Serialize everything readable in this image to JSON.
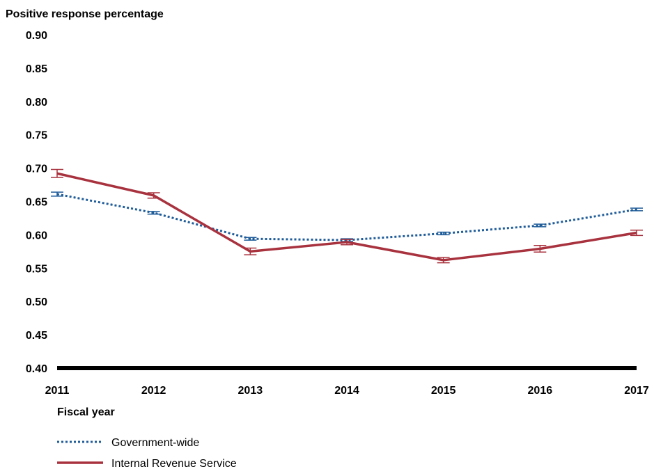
{
  "chart_data": {
    "type": "line",
    "ylabel": "Positive response percentage",
    "xlabel": "Fiscal year",
    "x": [
      "2011",
      "2012",
      "2013",
      "2014",
      "2015",
      "2016",
      "2017"
    ],
    "ylim": [
      0.4,
      0.9
    ],
    "yticks": [
      "0.90",
      "0.85",
      "0.80",
      "0.75",
      "0.70",
      "0.65",
      "0.60",
      "0.55",
      "0.50",
      "0.45",
      "0.40"
    ],
    "grid": false,
    "legend_position": "bottom-left",
    "series": [
      {
        "name": "Government-wide",
        "color": "#1f5c99",
        "style": "dotted",
        "values": [
          0.661,
          0.633,
          0.594,
          0.592,
          0.602,
          0.614,
          0.638
        ],
        "error": [
          0.003,
          0.002,
          0.002,
          0.002,
          0.002,
          0.002,
          0.002
        ]
      },
      {
        "name": "Internal Revenue Service",
        "color": "#a8323e",
        "style": "solid",
        "values": [
          0.692,
          0.659,
          0.575,
          0.589,
          0.562,
          0.579,
          0.603
        ],
        "error": [
          0.006,
          0.004,
          0.005,
          0.004,
          0.004,
          0.005,
          0.004
        ]
      }
    ]
  }
}
